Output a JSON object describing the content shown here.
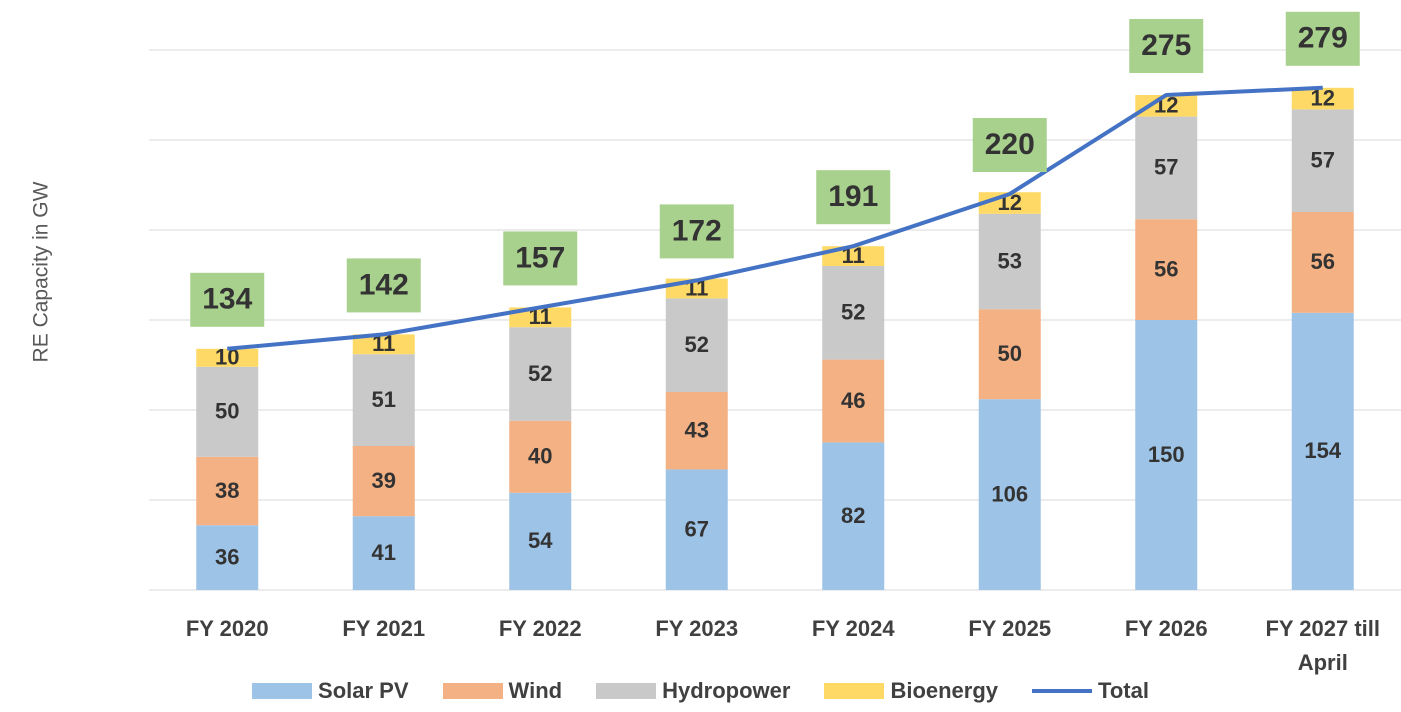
{
  "chart_data": {
    "type": "stacked-bar",
    "y_label": "RE Capacity  in GW",
    "categories": [
      "FY 2020",
      "FY 2021",
      "FY 2022",
      "FY 2023",
      "FY 2024",
      "FY 2025",
      "FY 2026",
      "FY 2027 till April"
    ],
    "series": [
      {
        "name": "Solar PV",
        "color": "#9dc3e6",
        "values": [
          36,
          41,
          54,
          67,
          82,
          106,
          150,
          154
        ]
      },
      {
        "name": "Wind",
        "color": "#f4b183",
        "values": [
          38,
          39,
          40,
          43,
          46,
          50,
          56,
          56
        ]
      },
      {
        "name": "Hydropower",
        "color": "#c9c9c9",
        "values": [
          50,
          51,
          52,
          52,
          52,
          53,
          57,
          57
        ]
      },
      {
        "name": "Bioenergy",
        "color": "#ffd966",
        "values": [
          10,
          11,
          11,
          11,
          11,
          12,
          12,
          12
        ]
      },
      {
        "name": "Total",
        "type": "line",
        "color": "#4472c4",
        "label_color": "#a9d18e",
        "values": [
          134,
          142,
          157,
          172,
          191,
          220,
          275,
          279
        ]
      }
    ],
    "ylim": [
      0,
      300
    ],
    "yticks": [
      0,
      50,
      100,
      150,
      200,
      250,
      300
    ],
    "grid": true,
    "legend": "bottom"
  }
}
